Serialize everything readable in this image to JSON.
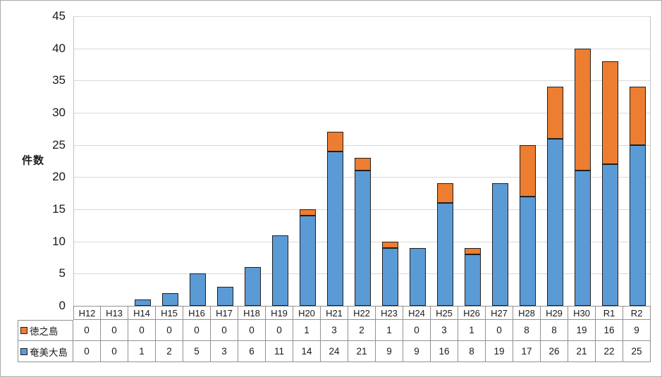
{
  "chart": {
    "y_axis_title": "件数"
  },
  "chart_data": {
    "type": "bar",
    "stacked": true,
    "title": "",
    "xlabel": "",
    "ylabel": "件数",
    "ylim": [
      0,
      45
    ],
    "y_tick_step": 5,
    "y_ticks": [
      0,
      5,
      10,
      15,
      20,
      25,
      30,
      35,
      40,
      45
    ],
    "grid": true,
    "legend_position": "data-table-left",
    "categories": [
      "H12",
      "H13",
      "H14",
      "H15",
      "H16",
      "H17",
      "H18",
      "H19",
      "H20",
      "H21",
      "H22",
      "H23",
      "H24",
      "H25",
      "H26",
      "H27",
      "H28",
      "H29",
      "H30",
      "R1",
      "R2"
    ],
    "series": [
      {
        "name": "徳之島",
        "color": "#ED7D31",
        "values": [
          0,
          0,
          0,
          0,
          0,
          0,
          0,
          0,
          1,
          3,
          2,
          1,
          0,
          3,
          1,
          0,
          8,
          8,
          19,
          16,
          9
        ]
      },
      {
        "name": "奄美大島",
        "color": "#5B9BD5",
        "values": [
          0,
          0,
          1,
          2,
          5,
          3,
          6,
          11,
          14,
          24,
          21,
          9,
          9,
          16,
          8,
          19,
          17,
          26,
          21,
          22,
          25
        ]
      }
    ]
  }
}
